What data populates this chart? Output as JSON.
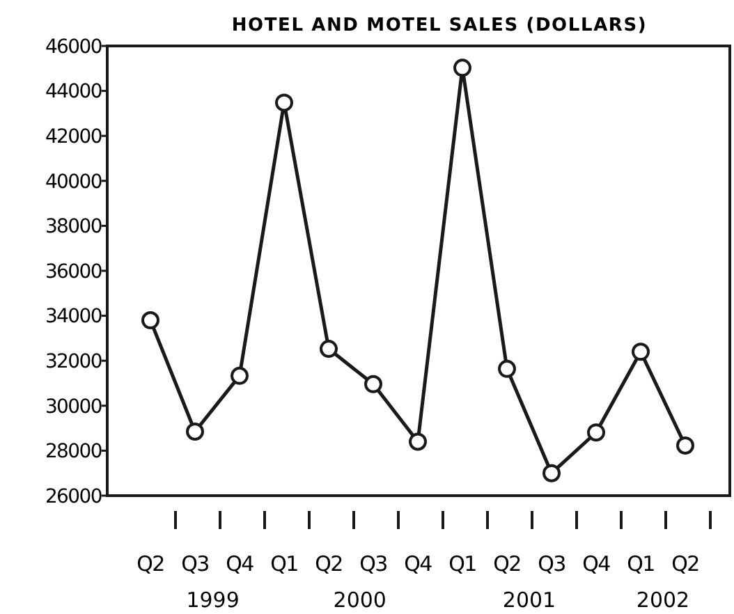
{
  "chart_data": {
    "type": "line",
    "title": "HOTEL AND MOTEL SALES (DOLLARS)",
    "categories": [
      "Q2",
      "Q3",
      "Q4",
      "Q1",
      "Q2",
      "Q3",
      "Q4",
      "Q1",
      "Q2",
      "Q3",
      "Q4",
      "Q1",
      "Q2"
    ],
    "values": [
      33800,
      28850,
      31330,
      43480,
      32530,
      30960,
      28400,
      45030,
      31640,
      27000,
      28810,
      32400,
      28230
    ],
    "color": "#1a1a1a",
    "marker": "circle",
    "line_style": "solid",
    "ylim": [
      26000,
      46000
    ],
    "yticks": [
      26000,
      28000,
      30000,
      32000,
      34000,
      36000,
      38000,
      40000,
      42000,
      44000,
      46000
    ],
    "annotations": [
      "1999",
      "2000",
      "2001",
      "2002"
    ],
    "grid": false
  }
}
